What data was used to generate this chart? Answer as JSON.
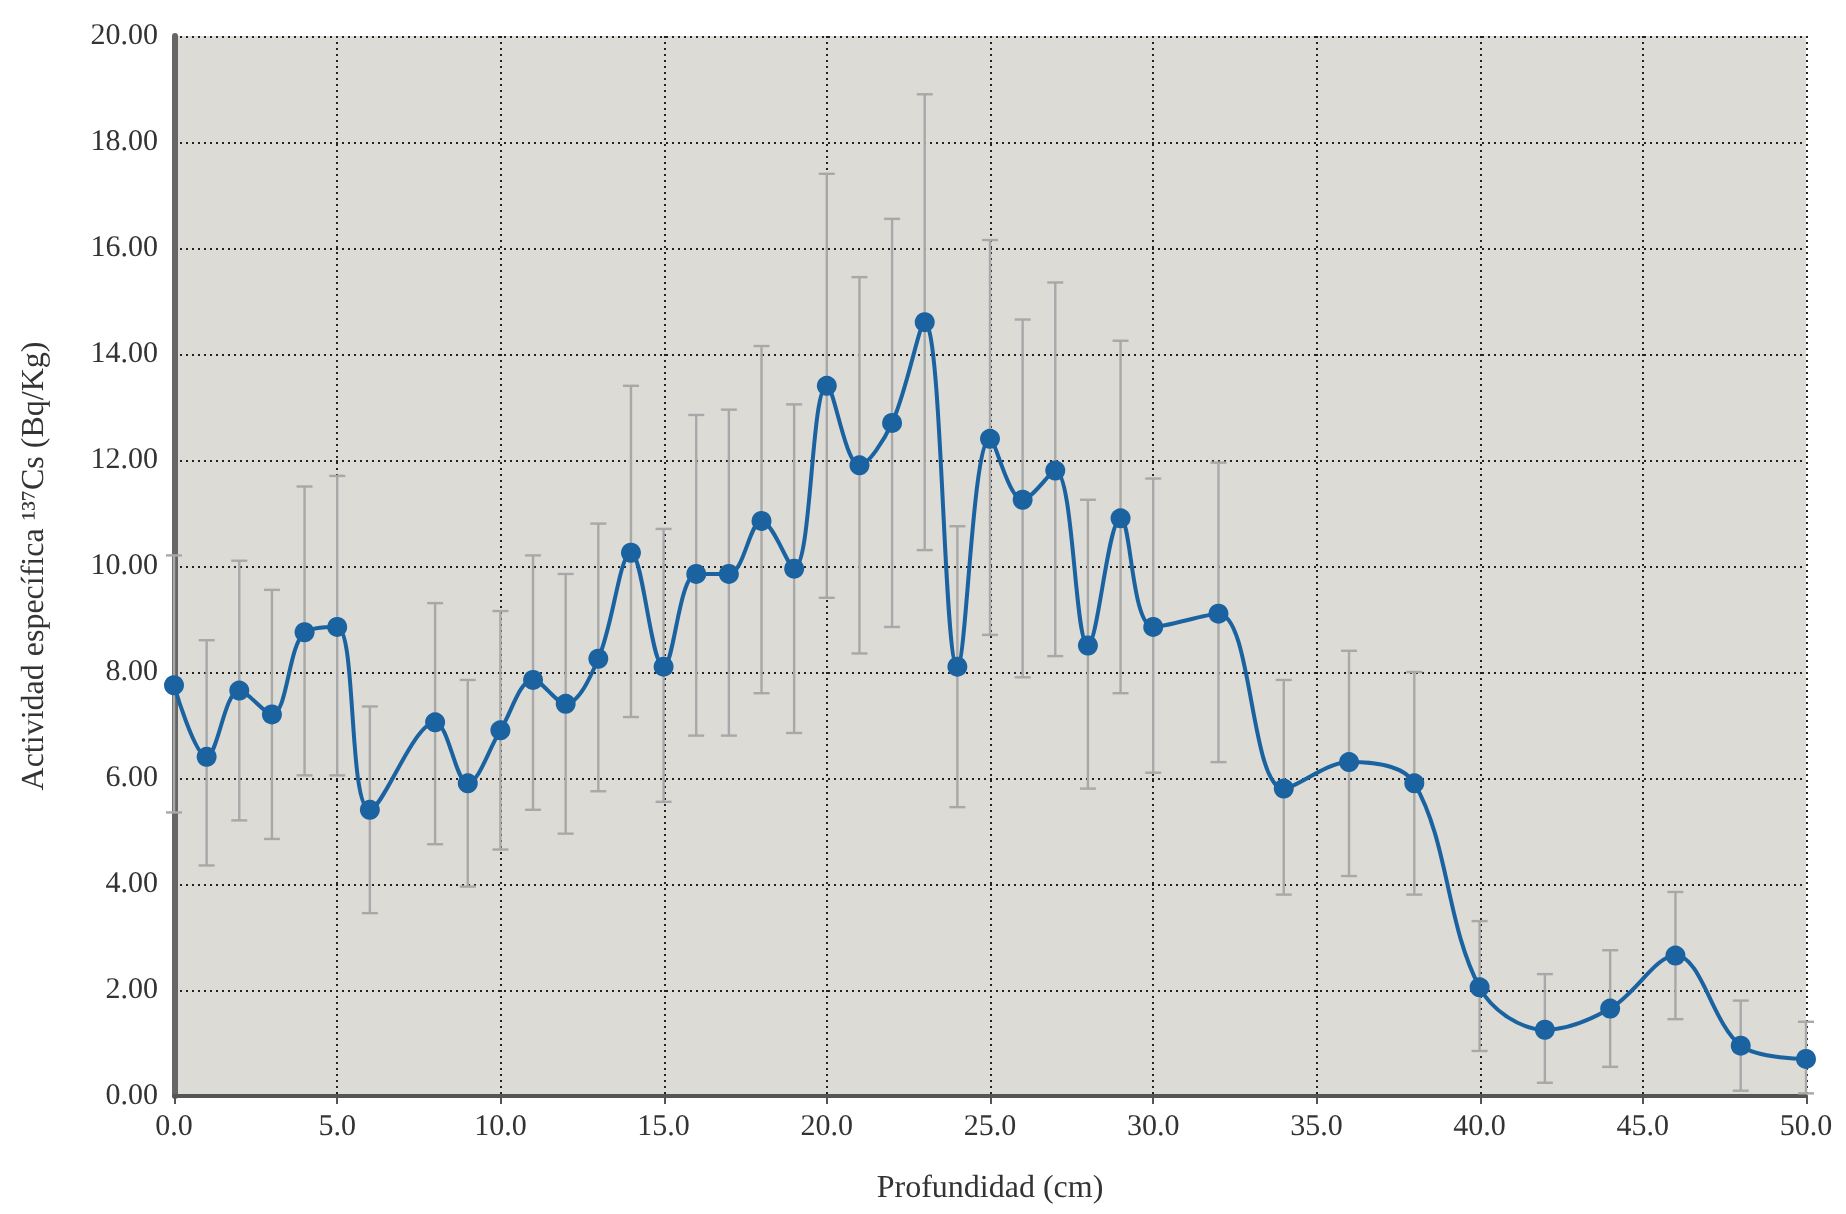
{
  "chart_data": {
    "type": "line",
    "xlabel": "Profundidad (cm)",
    "ylabel": "Actividad específica ¹³⁷Cs (Bq/Kg)",
    "x": [
      0,
      1,
      2,
      3,
      4,
      5,
      6,
      8,
      9,
      10,
      11,
      12,
      13,
      14,
      15,
      16,
      17,
      18,
      19,
      20,
      21,
      22,
      23,
      24,
      25,
      26,
      27,
      28,
      29,
      30,
      32,
      34,
      36,
      38,
      40,
      42,
      44,
      46,
      48,
      50
    ],
    "series": [
      {
        "color": "#1a63a0",
        "values": [
          7.75,
          6.4,
          7.65,
          7.2,
          8.75,
          8.85,
          5.4,
          7.05,
          5.9,
          6.9,
          7.85,
          7.4,
          8.25,
          10.25,
          8.1,
          9.85,
          9.85,
          10.85,
          9.95,
          13.4,
          11.9,
          12.7,
          14.6,
          8.1,
          12.4,
          11.25,
          11.8,
          8.5,
          10.9,
          8.85,
          9.1,
          5.8,
          6.3,
          5.9,
          2.05,
          1.25,
          1.65,
          2.65,
          0.95,
          0.7
        ],
        "errors": [
          [
            5.35,
            10.2
          ],
          [
            4.35,
            8.6
          ],
          [
            5.2,
            10.1
          ],
          [
            4.85,
            9.55
          ],
          [
            6.05,
            11.5
          ],
          [
            6.05,
            11.7
          ],
          [
            3.45,
            7.35
          ],
          [
            4.75,
            9.3
          ],
          [
            3.95,
            7.85
          ],
          [
            4.65,
            9.15
          ],
          [
            5.4,
            10.2
          ],
          [
            4.95,
            9.85
          ],
          [
            5.75,
            10.8
          ],
          [
            7.15,
            13.4
          ],
          [
            5.55,
            10.7
          ],
          [
            6.8,
            12.85
          ],
          [
            6.8,
            12.95
          ],
          [
            7.6,
            14.15
          ],
          [
            6.85,
            13.05
          ],
          [
            9.4,
            17.4
          ],
          [
            8.35,
            15.45
          ],
          [
            8.85,
            16.55
          ],
          [
            10.3,
            18.9
          ],
          [
            5.45,
            10.75
          ],
          [
            8.7,
            16.15
          ],
          [
            7.9,
            14.65
          ],
          [
            8.3,
            15.35
          ],
          [
            5.8,
            11.25
          ],
          [
            7.6,
            14.25
          ],
          [
            6.1,
            11.65
          ],
          [
            6.3,
            11.95
          ],
          [
            3.8,
            7.85
          ],
          [
            4.15,
            8.4
          ],
          [
            3.8,
            8.0
          ],
          [
            0.85,
            3.3
          ],
          [
            0.25,
            2.3
          ],
          [
            0.55,
            2.75
          ],
          [
            1.45,
            3.85
          ],
          [
            0.1,
            1.8
          ],
          [
            0.05,
            1.4
          ]
        ]
      }
    ],
    "xlim": [
      0,
      50
    ],
    "xticks": [
      {
        "value": 0,
        "label": "0.0"
      },
      {
        "value": 5,
        "label": "5.0"
      },
      {
        "value": 10,
        "label": "10.0"
      },
      {
        "value": 15,
        "label": "15.0"
      },
      {
        "value": 20,
        "label": "20.0"
      },
      {
        "value": 25,
        "label": "25.0"
      },
      {
        "value": 30,
        "label": "30.0"
      },
      {
        "value": 35,
        "label": "35.0"
      },
      {
        "value": 40,
        "label": "40.0"
      },
      {
        "value": 45,
        "label": "45.0"
      },
      {
        "value": 50,
        "label": "50.0"
      }
    ],
    "ylim": [
      0,
      20
    ],
    "yticks": [
      {
        "value": 0,
        "label": "0.00"
      },
      {
        "value": 2,
        "label": "2.00"
      },
      {
        "value": 4,
        "label": "4.00"
      },
      {
        "value": 6,
        "label": "6.00"
      },
      {
        "value": 8,
        "label": "8.00"
      },
      {
        "value": 10,
        "label": "10.00"
      },
      {
        "value": 12,
        "label": "12.00"
      },
      {
        "value": 14,
        "label": "14.00"
      },
      {
        "value": 16,
        "label": "16.00"
      },
      {
        "value": 18,
        "label": "18.00"
      },
      {
        "value": 20,
        "label": "20.00"
      }
    ],
    "grid": true,
    "marker": "circle",
    "line_style": "solid"
  }
}
